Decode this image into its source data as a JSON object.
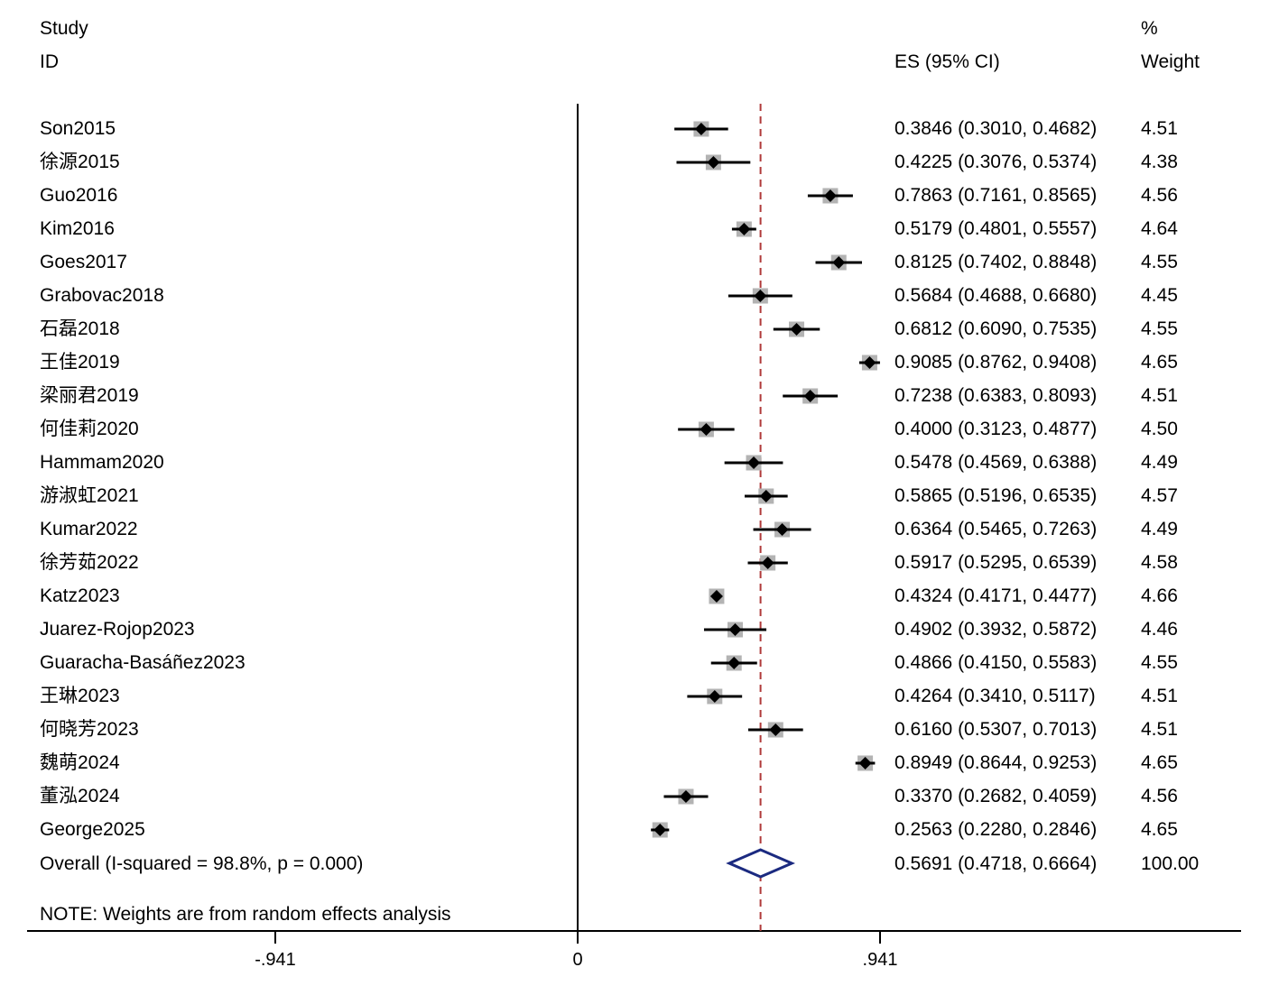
{
  "chart_data": {
    "type": "forest",
    "headers": {
      "study_line1": "Study",
      "study_line2": "ID",
      "es": "ES (95% CI)",
      "weight_line1": "%",
      "weight_line2": "Weight"
    },
    "studies": [
      {
        "id": "Son2015",
        "es": 0.3846,
        "lo": 0.301,
        "hi": 0.4682,
        "es_text": "0.3846 (0.3010, 0.4682)",
        "weight": "4.51"
      },
      {
        "id": "徐源2015",
        "es": 0.4225,
        "lo": 0.3076,
        "hi": 0.5374,
        "es_text": "0.4225 (0.3076, 0.5374)",
        "weight": "4.38"
      },
      {
        "id": "Guo2016",
        "es": 0.7863,
        "lo": 0.7161,
        "hi": 0.8565,
        "es_text": "0.7863 (0.7161, 0.8565)",
        "weight": "4.56"
      },
      {
        "id": "Kim2016",
        "es": 0.5179,
        "lo": 0.4801,
        "hi": 0.5557,
        "es_text": "0.5179 (0.4801, 0.5557)",
        "weight": "4.64"
      },
      {
        "id": "Goes2017",
        "es": 0.8125,
        "lo": 0.7402,
        "hi": 0.8848,
        "es_text": "0.8125 (0.7402, 0.8848)",
        "weight": "4.55"
      },
      {
        "id": "Grabovac2018",
        "es": 0.5684,
        "lo": 0.4688,
        "hi": 0.668,
        "es_text": "0.5684 (0.4688, 0.6680)",
        "weight": "4.45"
      },
      {
        "id": "石磊2018",
        "es": 0.6812,
        "lo": 0.609,
        "hi": 0.7535,
        "es_text": "0.6812 (0.6090, 0.7535)",
        "weight": "4.55"
      },
      {
        "id": "王佳2019",
        "es": 0.9085,
        "lo": 0.8762,
        "hi": 0.9408,
        "es_text": "0.9085 (0.8762, 0.9408)",
        "weight": "4.65"
      },
      {
        "id": "梁丽君2019",
        "es": 0.7238,
        "lo": 0.6383,
        "hi": 0.8093,
        "es_text": "0.7238 (0.6383, 0.8093)",
        "weight": "4.51"
      },
      {
        "id": "何佳莉2020",
        "es": 0.4,
        "lo": 0.3123,
        "hi": 0.4877,
        "es_text": "0.4000 (0.3123, 0.4877)",
        "weight": "4.50"
      },
      {
        "id": "Hammam2020",
        "es": 0.5478,
        "lo": 0.4569,
        "hi": 0.6388,
        "es_text": "0.5478 (0.4569, 0.6388)",
        "weight": "4.49"
      },
      {
        "id": "游淑虹2021",
        "es": 0.5865,
        "lo": 0.5196,
        "hi": 0.6535,
        "es_text": "0.5865 (0.5196, 0.6535)",
        "weight": "4.57"
      },
      {
        "id": "Kumar2022",
        "es": 0.6364,
        "lo": 0.5465,
        "hi": 0.7263,
        "es_text": "0.6364 (0.5465, 0.7263)",
        "weight": "4.49"
      },
      {
        "id": "徐芳茹2022",
        "es": 0.5917,
        "lo": 0.5295,
        "hi": 0.6539,
        "es_text": "0.5917 (0.5295, 0.6539)",
        "weight": "4.58"
      },
      {
        "id": "Katz2023",
        "es": 0.4324,
        "lo": 0.4171,
        "hi": 0.4477,
        "es_text": "0.4324 (0.4171, 0.4477)",
        "weight": "4.66"
      },
      {
        "id": "Juarez-Rojop2023",
        "es": 0.4902,
        "lo": 0.3932,
        "hi": 0.5872,
        "es_text": "0.4902 (0.3932, 0.5872)",
        "weight": "4.46"
      },
      {
        "id": "Guaracha-Basáñez2023",
        "es": 0.4866,
        "lo": 0.415,
        "hi": 0.5583,
        "es_text": "0.4866 (0.4150, 0.5583)",
        "weight": "4.55"
      },
      {
        "id": "王琳2023",
        "es": 0.4264,
        "lo": 0.341,
        "hi": 0.5117,
        "es_text": "0.4264 (0.3410, 0.5117)",
        "weight": "4.51"
      },
      {
        "id": "何晓芳2023",
        "es": 0.616,
        "lo": 0.5307,
        "hi": 0.7013,
        "es_text": "0.6160 (0.5307, 0.7013)",
        "weight": "4.51"
      },
      {
        "id": "魏萌2024",
        "es": 0.8949,
        "lo": 0.8644,
        "hi": 0.9253,
        "es_text": "0.8949 (0.8644, 0.9253)",
        "weight": "4.65"
      },
      {
        "id": "董泓2024",
        "es": 0.337,
        "lo": 0.2682,
        "hi": 0.4059,
        "es_text": "0.3370 (0.2682, 0.4059)",
        "weight": "4.56"
      },
      {
        "id": "George2025",
        "es": 0.2563,
        "lo": 0.228,
        "hi": 0.2846,
        "es_text": "0.2563 (0.2280, 0.2846)",
        "weight": "4.65"
      }
    ],
    "overall": {
      "label": "Overall  (I-squared = 98.8%, p = 0.000)",
      "es": 0.5691,
      "lo": 0.4718,
      "hi": 0.6664,
      "es_text": "0.5691 (0.4718, 0.6664)",
      "weight": "100.00"
    },
    "note": "NOTE: Weights are from random effects analysis",
    "x_ticks": [
      {
        "value": -0.941,
        "label": "-.941"
      },
      {
        "value": 0,
        "label": "0"
      },
      {
        "value": 0.941,
        "label": ".941"
      }
    ],
    "xlim": [
      -1.7,
      1.96
    ],
    "colors": {
      "ci_line": "#000000",
      "weight_box": "#b3b3b3",
      "point": "#000000",
      "overall_diamond": "#1b2a80",
      "overall_line": "#b03a3a"
    }
  }
}
